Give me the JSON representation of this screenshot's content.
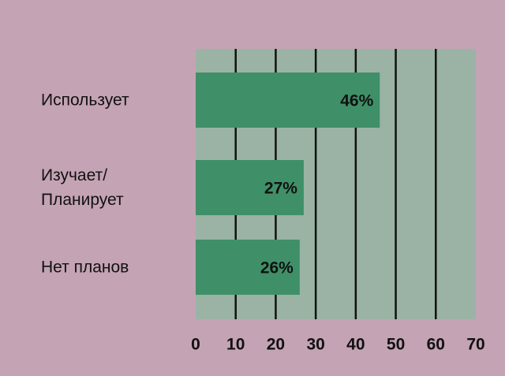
{
  "chart_data": {
    "type": "barh",
    "categories": [
      "Использует",
      "Изучает/\nПланирует",
      "Нет планов"
    ],
    "values": [
      46,
      27,
      26
    ],
    "value_labels": [
      "46%",
      "27%",
      "26%"
    ],
    "color": "#3f9068",
    "xlim": [
      0,
      70
    ],
    "xticks": [
      0,
      10,
      20,
      30,
      40,
      50,
      60,
      70
    ],
    "grid": true
  }
}
